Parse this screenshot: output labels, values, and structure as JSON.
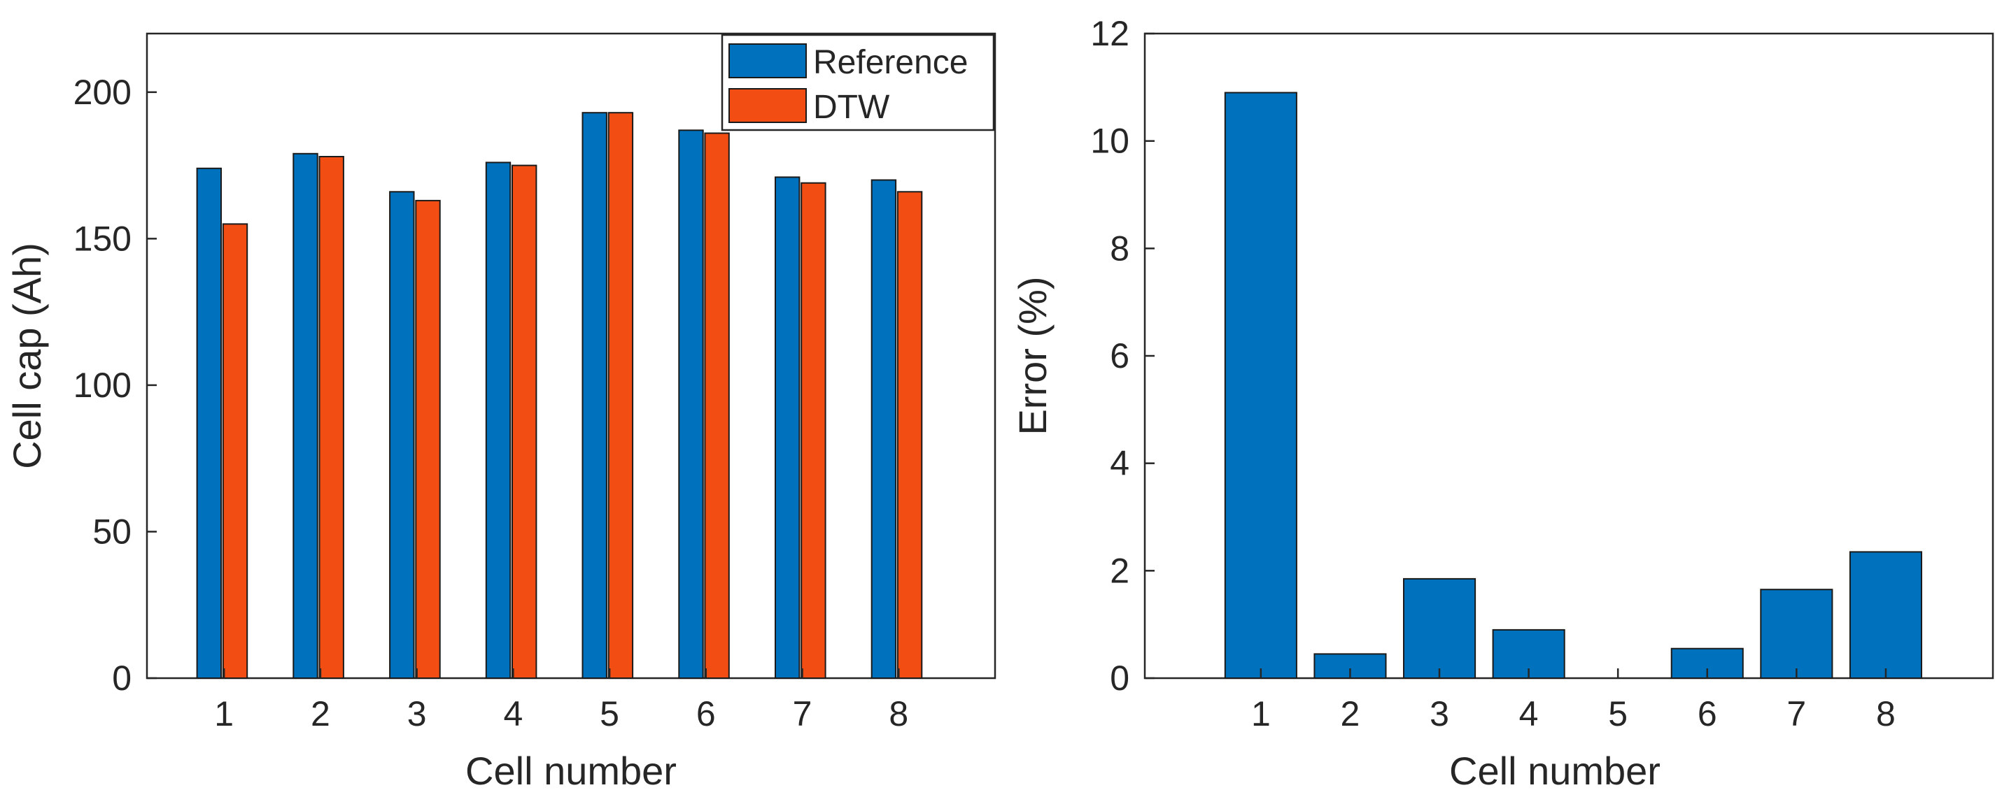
{
  "colors": {
    "reference": "#0072BD",
    "dtw": "#F24E14",
    "axis": "#262626",
    "bar_edge": "#1a1a1a"
  },
  "chart_data": [
    {
      "type": "bar",
      "title": "",
      "xlabel": "Cell number",
      "ylabel": "Cell cap (Ah)",
      "categories": [
        "1",
        "2",
        "3",
        "4",
        "5",
        "6",
        "7",
        "8"
      ],
      "series": [
        {
          "name": "Reference",
          "values": [
            174,
            179,
            166,
            176,
            193,
            187,
            171,
            170
          ]
        },
        {
          "name": "DTW",
          "values": [
            155,
            178,
            163,
            175,
            193,
            186,
            169,
            166
          ]
        }
      ],
      "ylim": [
        0,
        220
      ],
      "yticks": [
        0,
        50,
        100,
        150,
        200
      ],
      "ytick_labels": [
        "0",
        "50",
        "100",
        "150",
        "200"
      ],
      "legend": {
        "position": "top-right",
        "entries": [
          "Reference",
          "DTW"
        ]
      },
      "grid": false
    },
    {
      "type": "bar",
      "title": "",
      "xlabel": "Cell number",
      "ylabel": "Error (%)",
      "categories": [
        "1",
        "2",
        "3",
        "4",
        "5",
        "6",
        "7",
        "8"
      ],
      "series": [
        {
          "name": "Error",
          "values": [
            10.9,
            0.45,
            1.85,
            0.9,
            0.0,
            0.55,
            1.65,
            2.35
          ]
        }
      ],
      "ylim": [
        0,
        12
      ],
      "yticks": [
        0,
        2,
        4,
        6,
        8,
        10,
        12
      ],
      "ytick_labels": [
        "0",
        "2",
        "4",
        "6",
        "8",
        "10",
        "12"
      ],
      "grid": false
    }
  ]
}
